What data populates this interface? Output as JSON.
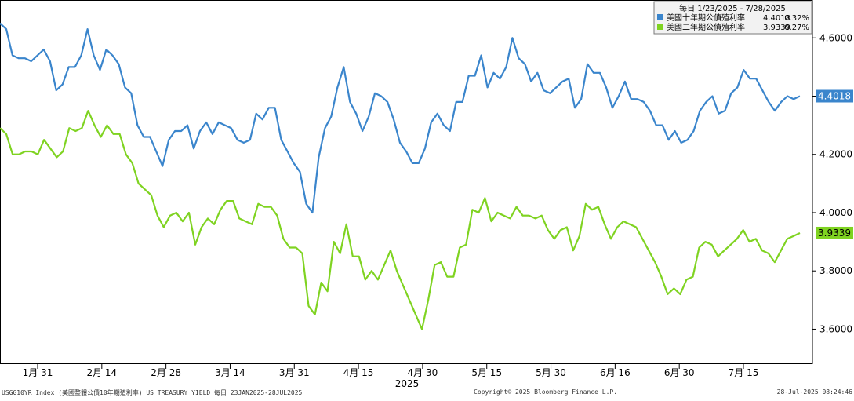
{
  "chart_data": {
    "type": "line",
    "legend": {
      "header": "每日 1/23/2025 - 7/28/2025",
      "placement": "top-right",
      "entries": [
        {
          "label": "美國十年期公債殖利率",
          "last": "4.4018",
          "change": "0.32%",
          "color": "#3a85cc"
        },
        {
          "label": "美國二年期公債殖利率",
          "last": "3.9339",
          "change": "0.27%",
          "color": "#7fd321"
        }
      ]
    },
    "x_tick_labels": [
      "1月 31",
      "2月 14",
      "2月 28",
      "3月 14",
      "3月 31",
      "4月 15",
      "4月 30",
      "5月 15",
      "5月 30",
      "6月 16",
      "6月 30",
      "7月 15"
    ],
    "year_label": "2025",
    "y_ticks": [
      "3.6000",
      "3.8000",
      "4.0000",
      "4.2000",
      "4.4000",
      "4.6000"
    ],
    "ylim": [
      3.48,
      4.73
    ],
    "grid": false,
    "series": [
      {
        "name": "美國十年期公債殖利率",
        "color": "#3a85cc",
        "last_label": "4.4018",
        "values": [
          4.65,
          4.63,
          4.54,
          4.53,
          4.53,
          4.52,
          4.54,
          4.56,
          4.52,
          4.42,
          4.44,
          4.5,
          4.5,
          4.54,
          4.63,
          4.54,
          4.49,
          4.56,
          4.54,
          4.51,
          4.43,
          4.41,
          4.3,
          4.26,
          4.26,
          4.21,
          4.16,
          4.25,
          4.28,
          4.28,
          4.3,
          4.22,
          4.28,
          4.31,
          4.27,
          4.31,
          4.3,
          4.29,
          4.25,
          4.24,
          4.25,
          4.34,
          4.32,
          4.36,
          4.36,
          4.25,
          4.21,
          4.17,
          4.14,
          4.03,
          4.0,
          4.19,
          4.29,
          4.33,
          4.43,
          4.5,
          4.38,
          4.34,
          4.28,
          4.33,
          4.41,
          4.4,
          4.38,
          4.32,
          4.24,
          4.21,
          4.17,
          4.17,
          4.22,
          4.31,
          4.34,
          4.3,
          4.28,
          4.38,
          4.38,
          4.47,
          4.47,
          4.54,
          4.43,
          4.48,
          4.46,
          4.5,
          4.6,
          4.53,
          4.51,
          4.45,
          4.48,
          4.42,
          4.41,
          4.43,
          4.45,
          4.46,
          4.36,
          4.39,
          4.51,
          4.48,
          4.48,
          4.43,
          4.36,
          4.4,
          4.45,
          4.39,
          4.39,
          4.38,
          4.35,
          4.3,
          4.3,
          4.25,
          4.28,
          4.24,
          4.25,
          4.28,
          4.35,
          4.38,
          4.4,
          4.34,
          4.35,
          4.41,
          4.43,
          4.49,
          4.46,
          4.46,
          4.42,
          4.38,
          4.35,
          4.38,
          4.4,
          4.39,
          4.4
        ]
      },
      {
        "name": "美國二年期公債殖利率",
        "color": "#7fd321",
        "last_label": "3.9339",
        "values": [
          4.29,
          4.27,
          4.2,
          4.2,
          4.21,
          4.21,
          4.2,
          4.25,
          4.22,
          4.19,
          4.21,
          4.29,
          4.28,
          4.29,
          4.35,
          4.3,
          4.26,
          4.3,
          4.27,
          4.27,
          4.2,
          4.17,
          4.1,
          4.08,
          4.06,
          3.99,
          3.95,
          3.99,
          4.0,
          3.97,
          4.0,
          3.89,
          3.95,
          3.98,
          3.96,
          4.01,
          4.04,
          4.04,
          3.98,
          3.97,
          3.96,
          4.03,
          4.02,
          4.02,
          3.99,
          3.91,
          3.88,
          3.88,
          3.86,
          3.68,
          3.65,
          3.76,
          3.73,
          3.9,
          3.86,
          3.96,
          3.85,
          3.85,
          3.77,
          3.8,
          3.77,
          3.82,
          3.87,
          3.8,
          3.75,
          3.7,
          3.65,
          3.6,
          3.7,
          3.82,
          3.83,
          3.78,
          3.78,
          3.88,
          3.89,
          4.01,
          4.0,
          4.05,
          3.97,
          4.0,
          3.99,
          3.98,
          4.02,
          3.99,
          3.99,
          3.98,
          3.99,
          3.94,
          3.91,
          3.94,
          3.95,
          3.87,
          3.92,
          4.03,
          4.01,
          4.02,
          3.96,
          3.91,
          3.95,
          3.97,
          3.96,
          3.95,
          3.91,
          3.87,
          3.83,
          3.78,
          3.72,
          3.74,
          3.72,
          3.77,
          3.78,
          3.88,
          3.9,
          3.89,
          3.85,
          3.87,
          3.89,
          3.91,
          3.94,
          3.9,
          3.91,
          3.87,
          3.86,
          3.83,
          3.87,
          3.91,
          3.92,
          3.93
        ]
      }
    ]
  },
  "footer": {
    "left": "USGG10YR Index (美國整體公債10年期殖利率) US TREASURY YIELD  每日 23JAN2025-28JUL2025",
    "center": "Copyright© 2025 Bloomberg Finance L.P.",
    "right": "28-Jul-2025 08:24:46"
  }
}
